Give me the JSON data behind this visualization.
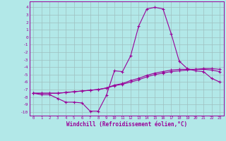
{
  "x": [
    0,
    1,
    2,
    3,
    4,
    5,
    6,
    7,
    8,
    9,
    10,
    11,
    12,
    13,
    14,
    15,
    16,
    17,
    18,
    19,
    20,
    21,
    22,
    23
  ],
  "line1": [
    -7.5,
    -7.7,
    -7.7,
    -8.2,
    -8.7,
    -8.7,
    -8.8,
    -9.9,
    -9.9,
    -7.8,
    -4.5,
    -4.6,
    -2.5,
    1.5,
    3.8,
    4.0,
    3.8,
    0.5,
    -3.2,
    -4.2,
    -4.5,
    -4.6,
    -5.5,
    -6.0
  ],
  "line2": [
    -7.5,
    -7.5,
    -7.5,
    -7.5,
    -7.4,
    -7.3,
    -7.2,
    -7.1,
    -7.0,
    -6.8,
    -6.5,
    -6.3,
    -6.0,
    -5.7,
    -5.3,
    -5.0,
    -4.8,
    -4.6,
    -4.5,
    -4.4,
    -4.3,
    -4.2,
    -4.2,
    -4.3
  ],
  "line3": [
    -7.5,
    -7.5,
    -7.5,
    -7.5,
    -7.4,
    -7.3,
    -7.2,
    -7.1,
    -7.0,
    -6.8,
    -6.4,
    -6.2,
    -5.8,
    -5.5,
    -5.1,
    -4.8,
    -4.6,
    -4.4,
    -4.3,
    -4.3,
    -4.3,
    -4.3,
    -4.4,
    -4.6
  ],
  "bg_color": "#b2e8e8",
  "grid_color": "#9ebfbf",
  "line_color": "#990099",
  "xlabel": "Windchill (Refroidissement éolien,°C)",
  "ylim": [
    -10.5,
    4.8
  ],
  "xlim": [
    -0.5,
    23.5
  ],
  "yticks": [
    4,
    3,
    2,
    1,
    0,
    -1,
    -2,
    -3,
    -4,
    -5,
    -6,
    -7,
    -8,
    -9,
    -10
  ],
  "xticks": [
    0,
    1,
    2,
    3,
    4,
    5,
    6,
    7,
    8,
    9,
    10,
    11,
    12,
    13,
    14,
    15,
    16,
    17,
    18,
    19,
    20,
    21,
    22,
    23
  ]
}
